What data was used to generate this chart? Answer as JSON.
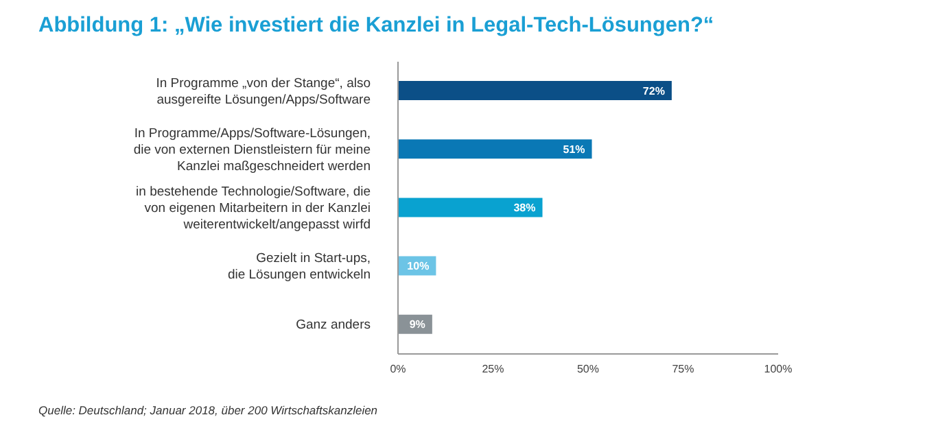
{
  "chart_data": {
    "type": "bar",
    "orientation": "horizontal",
    "title": "Abbildung 1: „Wie investiert die Kanzlei in Legal-Tech-Lösungen?“",
    "categories": [
      "In Programme „von der Stange“, also\nausgereifte Lösungen/Apps/Software",
      "In Programme/Apps/Software-Lösungen,\ndie von externen Dienstleistern für meine\nKanzlei maßgeschneidert werden",
      "in bestehende Technologie/Software, die\nvon eigenen Mitarbeitern in der Kanzlei\nweiterentwickelt/angepasst wirfd",
      "Gezielt in Start-ups,\ndie Lösungen entwickeln",
      "Ganz anders"
    ],
    "values": [
      72,
      51,
      38,
      10,
      9
    ],
    "colors": [
      "#0b4f87",
      "#0a78b5",
      "#09a2d0",
      "#6cc4e6",
      "#8a9297"
    ],
    "value_labels": [
      "72%",
      "51%",
      "38%",
      "10%",
      "9%"
    ],
    "xlim": [
      0,
      100
    ],
    "xticks": [
      {
        "value": 0,
        "label": "0%"
      },
      {
        "value": 25,
        "label": "25%"
      },
      {
        "value": 50,
        "label": "50%"
      },
      {
        "value": 75,
        "label": "75%"
      },
      {
        "value": 100,
        "label": "100%"
      }
    ],
    "annotations": [
      "Quelle: Deutschland; Januar 2018, über 200 Wirtschaftskanzleien"
    ]
  }
}
